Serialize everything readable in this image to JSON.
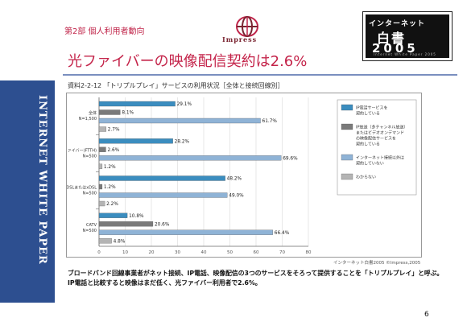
{
  "header": {
    "part_label": "第2部 個人利用者動向",
    "logo_text": "Impress",
    "brand_line1": "インターネット",
    "brand_line2": "白書",
    "brand_year": "2005",
    "brand_sub": "Internet White Paper 2005"
  },
  "headline": "光ファイバーの映像配信契約は2.6%",
  "sidebar_text": "INTERNET WHITE PAPER",
  "chart_title": "資料2-2-12 「トリプルプレイ」サービスの利用状況［全体と接続回線別］",
  "source": "インターネット白書2005 ©Impress,2005",
  "caption": "ブロードバンド回線事業者がネット接続、IP電話、映像配信の3つのサービスをそろって提供することを「トリプルプレイ」と呼ぶ。IP電話と比較すると映像はまだ低く、光ファイバー利用者で2.6%。",
  "page_number": "6",
  "colors": {
    "ip_phone": "#3b8dbf",
    "video": "#7a7a7a",
    "internet_only": "#8fb3d6",
    "unknown": "#b4b4b4",
    "sidebar": "#2d4f90",
    "headline": "#c4244a"
  },
  "chart_data": {
    "type": "bar",
    "orientation": "horizontal",
    "categories": [
      [
        "全体",
        "N=1,500"
      ],
      [
        "光ファイバー(FTTH)",
        "N=500"
      ],
      [
        "ADSLまたはxDSL",
        "N=500"
      ],
      [
        "CATV",
        "N=500"
      ]
    ],
    "series": [
      {
        "name": "IP電話サービスを契約している",
        "values": [
          29.1,
          28.2,
          48.2,
          10.8
        ]
      },
      {
        "name": "IP放送（多チャンネル放送）またはビデオオンデマンドの映像配信サービスを契約している",
        "values": [
          8.1,
          2.6,
          1.2,
          20.6
        ]
      },
      {
        "name": "インターネット接続以外は契約していない",
        "values": [
          61.7,
          69.6,
          49.0,
          66.4
        ]
      },
      {
        "name": "わからない",
        "values": [
          2.7,
          1.2,
          2.2,
          4.8
        ]
      }
    ],
    "value_labels": [
      [
        "29.1%",
        "8.1%",
        "61.7%",
        "2.7%"
      ],
      [
        "28.2%",
        "2.6%",
        "69.6%",
        "1.2%"
      ],
      [
        "48.2%",
        "1.2%",
        "49.0%",
        "2.2%"
      ],
      [
        "10.8%",
        "20.6%",
        "66.4%",
        "4.8%"
      ]
    ],
    "xlim": [
      0,
      80
    ],
    "xticks": [
      "0",
      "10",
      "20",
      "30",
      "40",
      "50",
      "60",
      "70",
      "80"
    ],
    "grid": true,
    "legend_position": "right"
  }
}
